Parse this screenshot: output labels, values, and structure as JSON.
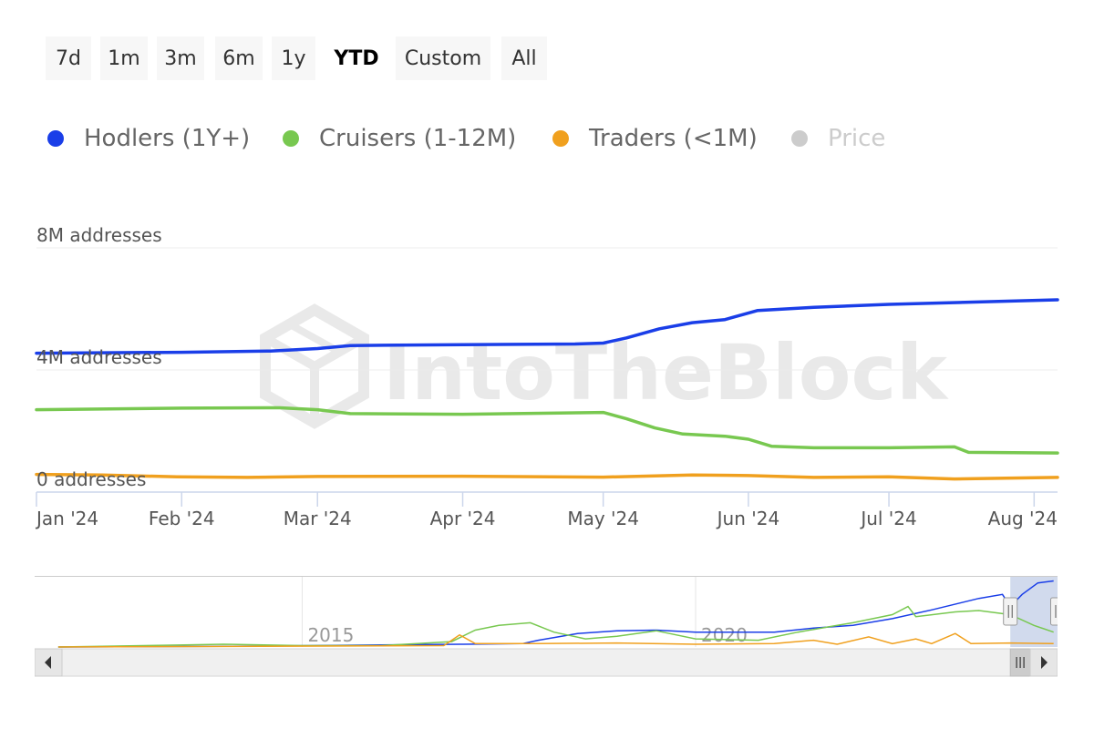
{
  "range_selector": {
    "buttons": [
      "7d",
      "1m",
      "3m",
      "6m",
      "1y",
      "YTD",
      "Custom",
      "All"
    ],
    "active": "YTD"
  },
  "legend": [
    {
      "name": "Hodlers (1Y+)",
      "color": "#1a3ee8",
      "visible": true
    },
    {
      "name": "Cruisers (1-12M)",
      "color": "#78c850",
      "visible": true
    },
    {
      "name": "Traders (<1M)",
      "color": "#f0a01e",
      "visible": true
    },
    {
      "name": "Price",
      "color": "#cccccc",
      "visible": false
    }
  ],
  "watermark": "IntoTheBlock",
  "chart_data": {
    "type": "line",
    "x_unit": "date",
    "x_range": [
      "2024-01-01",
      "2024-08-06"
    ],
    "ylim": [
      0,
      8000000
    ],
    "y_ticks": [
      {
        "value": 0,
        "label": "0 addresses"
      },
      {
        "value": 4000000,
        "label": "4M addresses"
      },
      {
        "value": 8000000,
        "label": "8M addresses"
      }
    ],
    "x_ticks": [
      {
        "date": "2024-01-01",
        "label": "Jan '24"
      },
      {
        "date": "2024-02-01",
        "label": "Feb '24"
      },
      {
        "date": "2024-03-01",
        "label": "Mar '24"
      },
      {
        "date": "2024-04-01",
        "label": "Apr '24"
      },
      {
        "date": "2024-05-01",
        "label": "May '24"
      },
      {
        "date": "2024-06-01",
        "label": "Jun '24"
      },
      {
        "date": "2024-07-01",
        "label": "Jul '24"
      },
      {
        "date": "2024-08-01",
        "label": "Aug '24"
      }
    ],
    "grid": true,
    "legend_position": "top-left",
    "series": [
      {
        "name": "Hodlers (1Y+)",
        "color": "#1a3ee8",
        "points": [
          [
            "2024-01-01",
            4550000
          ],
          [
            "2024-02-01",
            4580000
          ],
          [
            "2024-02-20",
            4620000
          ],
          [
            "2024-03-01",
            4700000
          ],
          [
            "2024-03-08",
            4800000
          ],
          [
            "2024-04-01",
            4830000
          ],
          [
            "2024-04-25",
            4850000
          ],
          [
            "2024-05-01",
            4880000
          ],
          [
            "2024-05-06",
            5050000
          ],
          [
            "2024-05-13",
            5350000
          ],
          [
            "2024-05-20",
            5550000
          ],
          [
            "2024-05-27",
            5650000
          ],
          [
            "2024-06-03",
            5950000
          ],
          [
            "2024-06-15",
            6050000
          ],
          [
            "2024-07-01",
            6150000
          ],
          [
            "2024-08-06",
            6300000
          ]
        ]
      },
      {
        "name": "Cruisers (1-12M)",
        "color": "#78c850",
        "points": [
          [
            "2024-01-01",
            2700000
          ],
          [
            "2024-02-01",
            2750000
          ],
          [
            "2024-02-22",
            2760000
          ],
          [
            "2024-03-01",
            2700000
          ],
          [
            "2024-03-08",
            2570000
          ],
          [
            "2024-04-01",
            2550000
          ],
          [
            "2024-05-01",
            2610000
          ],
          [
            "2024-05-06",
            2400000
          ],
          [
            "2024-05-12",
            2100000
          ],
          [
            "2024-05-18",
            1900000
          ],
          [
            "2024-05-27",
            1830000
          ],
          [
            "2024-06-01",
            1730000
          ],
          [
            "2024-06-06",
            1500000
          ],
          [
            "2024-06-15",
            1450000
          ],
          [
            "2024-07-01",
            1450000
          ],
          [
            "2024-07-15",
            1480000
          ],
          [
            "2024-07-18",
            1300000
          ],
          [
            "2024-08-06",
            1280000
          ]
        ]
      },
      {
        "name": "Traders (<1M)",
        "color": "#f0a01e",
        "points": [
          [
            "2024-01-01",
            580000
          ],
          [
            "2024-01-15",
            560000
          ],
          [
            "2024-01-31",
            500000
          ],
          [
            "2024-02-15",
            480000
          ],
          [
            "2024-03-01",
            510000
          ],
          [
            "2024-04-01",
            520000
          ],
          [
            "2024-05-01",
            490000
          ],
          [
            "2024-05-20",
            560000
          ],
          [
            "2024-06-01",
            540000
          ],
          [
            "2024-06-15",
            480000
          ],
          [
            "2024-07-01",
            500000
          ],
          [
            "2024-07-15",
            430000
          ],
          [
            "2024-08-06",
            480000
          ]
        ]
      }
    ]
  },
  "navigator": {
    "labels": [
      {
        "year": 2015,
        "label": "2015"
      },
      {
        "year": 2020,
        "label": "2020"
      }
    ],
    "x_range": [
      2011.6,
      2024.6
    ],
    "selected_range": [
      2024.0,
      2024.6
    ],
    "ylim": [
      0,
      1
    ],
    "series": [
      {
        "name": "Hodlers (1Y+)",
        "color": "#1a3ee8",
        "points": [
          [
            2011.9,
            0.0
          ],
          [
            2014.0,
            0.01
          ],
          [
            2016.0,
            0.03
          ],
          [
            2017.0,
            0.04
          ],
          [
            2017.8,
            0.05
          ],
          [
            2018.0,
            0.1
          ],
          [
            2018.5,
            0.2
          ],
          [
            2019.0,
            0.24
          ],
          [
            2019.5,
            0.25
          ],
          [
            2020.0,
            0.22
          ],
          [
            2021.0,
            0.22
          ],
          [
            2021.5,
            0.28
          ],
          [
            2022.0,
            0.32
          ],
          [
            2022.5,
            0.42
          ],
          [
            2023.0,
            0.55
          ],
          [
            2023.6,
            0.72
          ],
          [
            2023.9,
            0.78
          ],
          [
            2024.0,
            0.6
          ],
          [
            2024.15,
            0.78
          ],
          [
            2024.35,
            0.95
          ],
          [
            2024.55,
            0.98
          ]
        ]
      },
      {
        "name": "Cruisers (1-12M)",
        "color": "#78c850",
        "points": [
          [
            2011.9,
            0.0
          ],
          [
            2013.5,
            0.03
          ],
          [
            2014.0,
            0.04
          ],
          [
            2015.0,
            0.02
          ],
          [
            2016.0,
            0.02
          ],
          [
            2016.9,
            0.08
          ],
          [
            2017.2,
            0.25
          ],
          [
            2017.5,
            0.32
          ],
          [
            2017.9,
            0.36
          ],
          [
            2018.2,
            0.22
          ],
          [
            2018.6,
            0.12
          ],
          [
            2019.0,
            0.16
          ],
          [
            2019.5,
            0.24
          ],
          [
            2020.0,
            0.12
          ],
          [
            2020.8,
            0.1
          ],
          [
            2021.3,
            0.22
          ],
          [
            2021.7,
            0.3
          ],
          [
            2022.0,
            0.36
          ],
          [
            2022.5,
            0.48
          ],
          [
            2022.7,
            0.6
          ],
          [
            2022.8,
            0.45
          ],
          [
            2023.3,
            0.52
          ],
          [
            2023.6,
            0.54
          ],
          [
            2024.0,
            0.48
          ],
          [
            2024.3,
            0.32
          ],
          [
            2024.55,
            0.22
          ]
        ]
      },
      {
        "name": "Traders (<1M)",
        "color": "#f0a01e",
        "points": [
          [
            2011.9,
            0.0
          ],
          [
            2016.8,
            0.02
          ],
          [
            2017.0,
            0.18
          ],
          [
            2017.2,
            0.05
          ],
          [
            2018.0,
            0.05
          ],
          [
            2019.0,
            0.06
          ],
          [
            2020.0,
            0.04
          ],
          [
            2021.0,
            0.05
          ],
          [
            2021.5,
            0.1
          ],
          [
            2021.8,
            0.04
          ],
          [
            2022.2,
            0.15
          ],
          [
            2022.5,
            0.05
          ],
          [
            2022.8,
            0.12
          ],
          [
            2023.0,
            0.05
          ],
          [
            2023.3,
            0.2
          ],
          [
            2023.5,
            0.05
          ],
          [
            2024.0,
            0.06
          ],
          [
            2024.55,
            0.05
          ]
        ]
      }
    ]
  }
}
